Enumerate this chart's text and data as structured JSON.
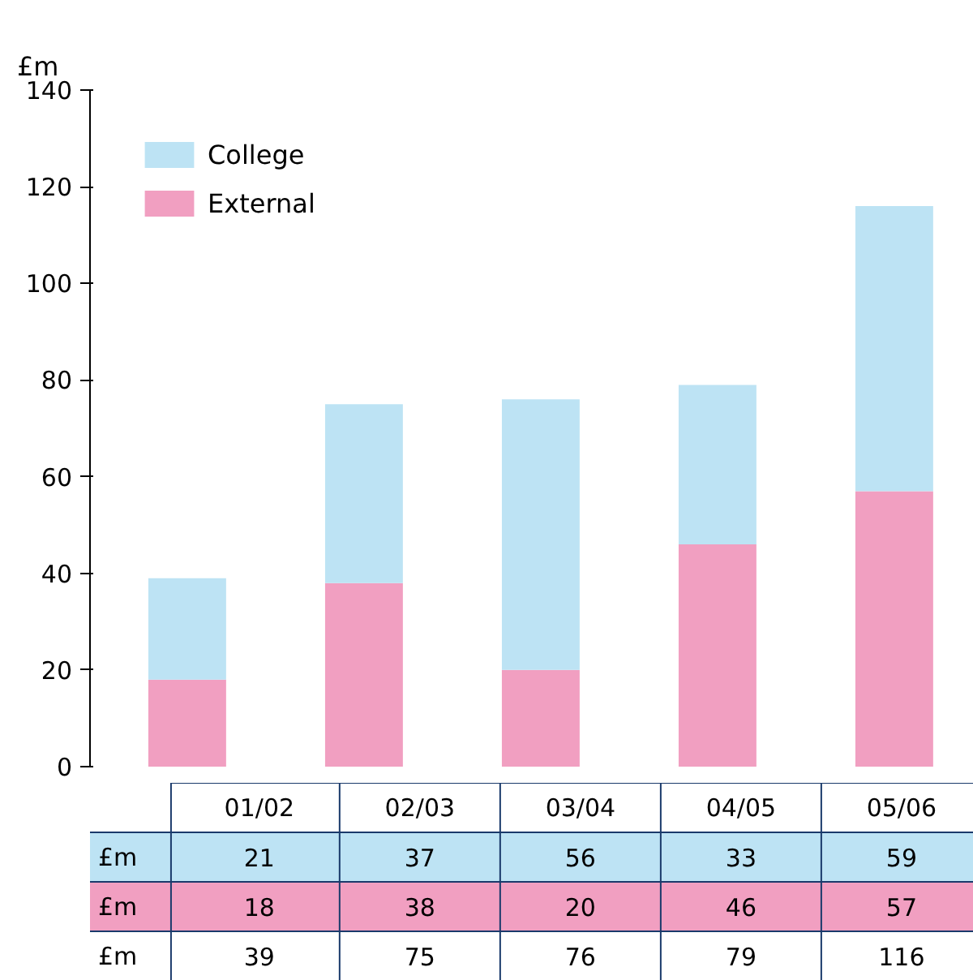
{
  "chart_data": {
    "type": "bar",
    "stacked": true,
    "ylabel": "£m",
    "categories": [
      "01/02",
      "02/03",
      "03/04",
      "04/05",
      "05/06"
    ],
    "series": [
      {
        "name": "External",
        "color": "#f19fc1",
        "values": [
          18,
          38,
          20,
          46,
          57
        ]
      },
      {
        "name": "College",
        "color": "#bde3f4",
        "values": [
          21,
          37,
          56,
          33,
          59
        ]
      }
    ],
    "annotations": [
      "39",
      "75",
      "76",
      "79",
      "116"
    ],
    "data_labels": true,
    "legend": "top left",
    "ylim": [
      0,
      140
    ],
    "yticks": [
      0,
      20,
      40,
      60,
      80,
      100,
      120,
      140
    ]
  }
}
